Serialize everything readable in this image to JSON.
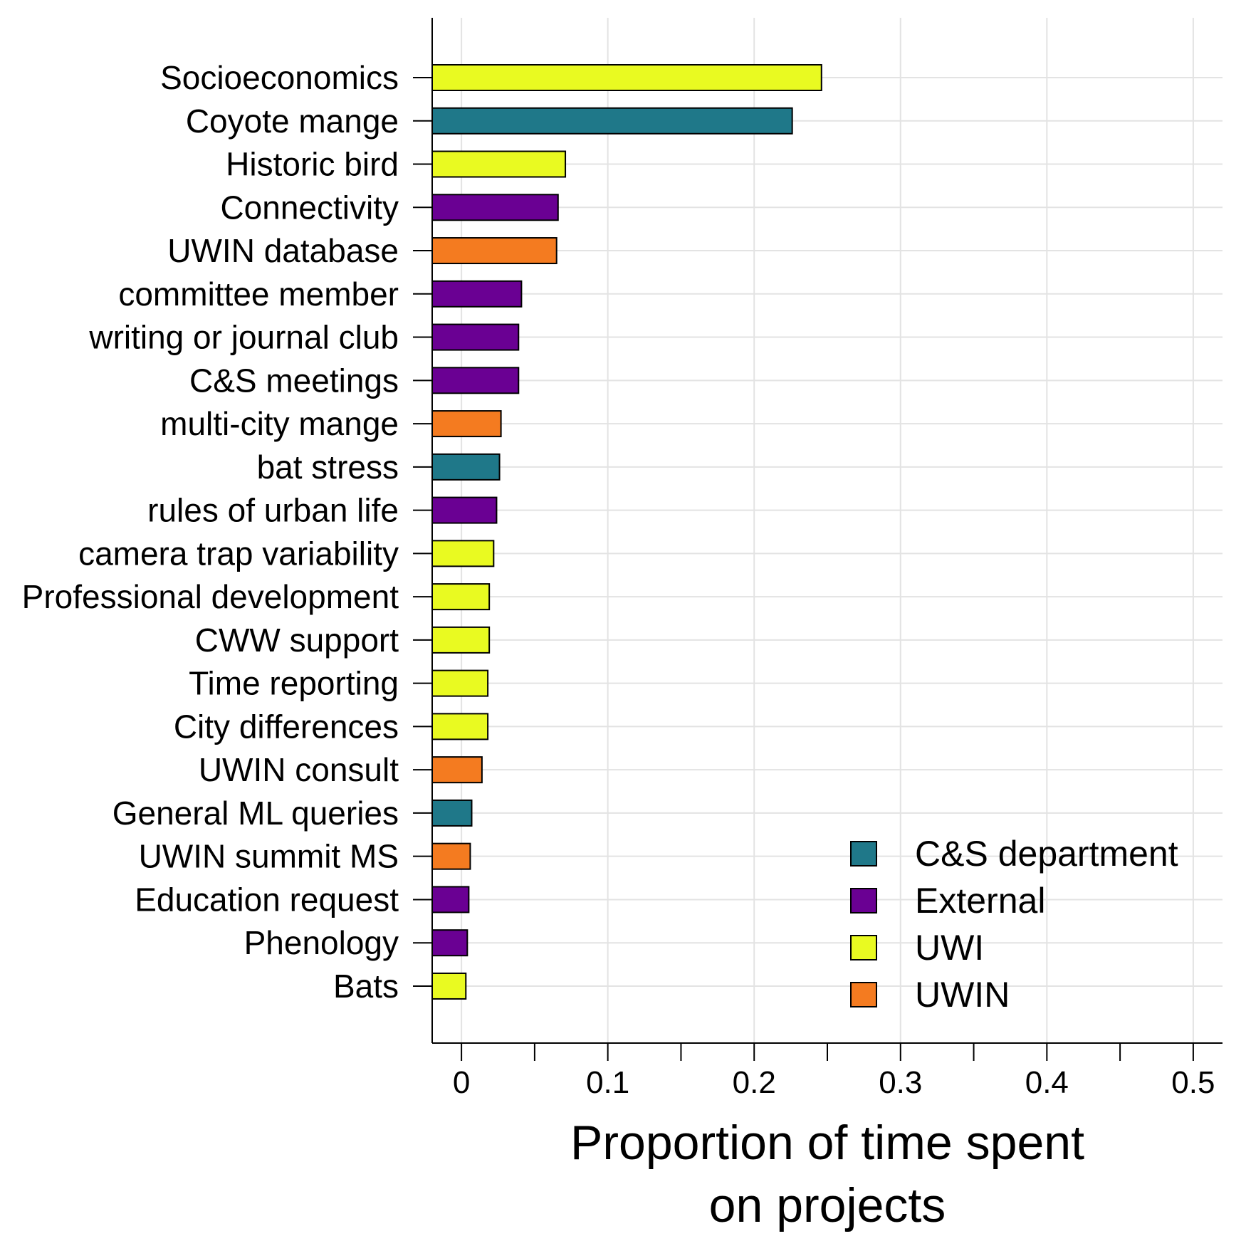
{
  "chart_data": {
    "type": "bar",
    "orientation": "horizontal",
    "xlabel_lines": [
      "Proportion of time spent",
      "on projects"
    ],
    "ylabel": "",
    "xlim": [
      -0.02,
      0.52
    ],
    "xticks": [
      0,
      0.1,
      0.2,
      0.3,
      0.4,
      0.5
    ],
    "xtick_labels": [
      "0",
      "0.1",
      "0.2",
      "0.3",
      "0.4",
      "0.5"
    ],
    "grid": true,
    "legend_position": "bottom-right",
    "legend": [
      {
        "name": "C&S department",
        "color": "#1f7889"
      },
      {
        "name": "External",
        "color": "#6a0093"
      },
      {
        "name": "UWI",
        "color": "#e9fa21"
      },
      {
        "name": "UWIN",
        "color": "#f47b20"
      }
    ],
    "categories": [
      "Socioeconomics",
      "Coyote mange",
      "Historic bird",
      "Connectivity",
      "UWIN database",
      "committee member",
      "writing or journal club",
      "C&S meetings",
      "multi-city mange",
      "bat stress",
      "rules of urban life",
      "camera trap variability",
      "Professional development",
      "CWW support",
      "Time reporting",
      "City differences",
      "UWIN consult",
      "General ML queries",
      "UWIN summit MS",
      "Education request",
      "Phenology",
      "Bats"
    ],
    "values": [
      0.246,
      0.226,
      0.071,
      0.066,
      0.065,
      0.041,
      0.039,
      0.039,
      0.027,
      0.026,
      0.024,
      0.022,
      0.019,
      0.019,
      0.018,
      0.018,
      0.014,
      0.007,
      0.006,
      0.005,
      0.004,
      0.003
    ],
    "groups": [
      "UWI",
      "C&S department",
      "UWI",
      "External",
      "UWIN",
      "External",
      "External",
      "External",
      "UWIN",
      "C&S department",
      "External",
      "UWI",
      "UWI",
      "UWI",
      "UWI",
      "UWI",
      "UWIN",
      "C&S department",
      "UWIN",
      "External",
      "External",
      "UWI"
    ]
  }
}
